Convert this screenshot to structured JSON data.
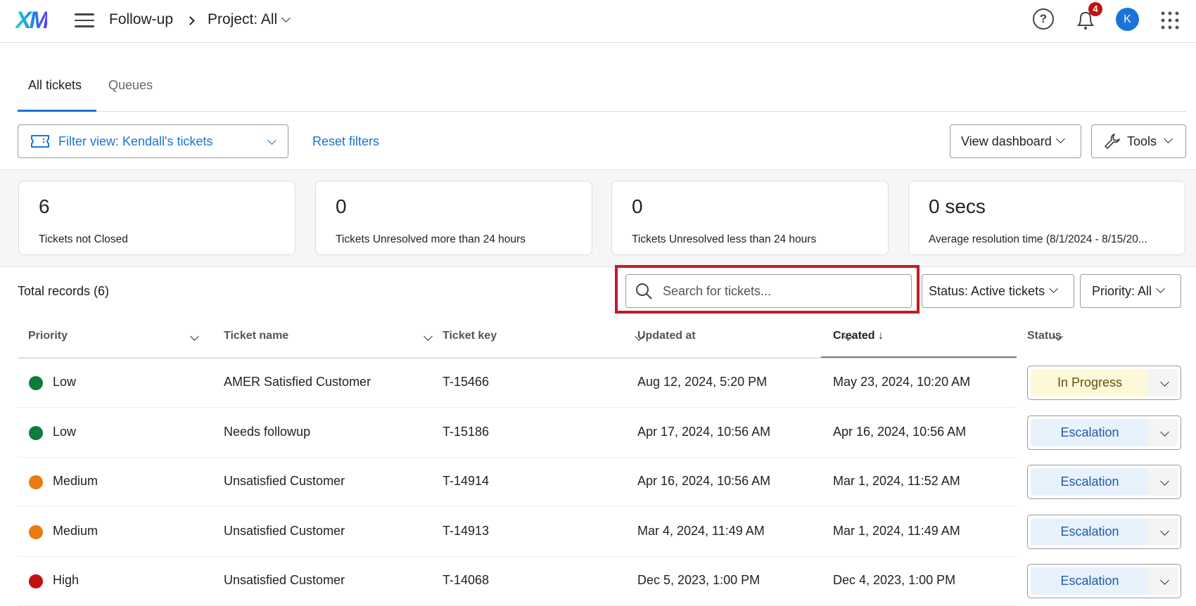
{
  "header": {
    "logo": "XM",
    "breadcrumb": [
      "Follow-up",
      "Project: All"
    ],
    "notification_count": "4",
    "avatar_initial": "K"
  },
  "tabs": [
    {
      "label": "All tickets",
      "active": true
    },
    {
      "label": "Queues",
      "active": false
    }
  ],
  "toolbar": {
    "filter_view": "Filter view: Kendall's tickets",
    "reset_filters": "Reset filters",
    "view_dashboard": "View dashboard",
    "tools": "Tools"
  },
  "stats": [
    {
      "value": "6",
      "label": "Tickets not Closed"
    },
    {
      "value": "0",
      "label": "Tickets Unresolved more than 24 hours"
    },
    {
      "value": "0",
      "label": "Tickets Unresolved less than 24 hours"
    },
    {
      "value": "0 secs",
      "label": "Average resolution time (8/1/2024 - 8/15/20..."
    }
  ],
  "records": {
    "total": "Total records (6)",
    "search_placeholder": "Search for tickets...",
    "status_filter": "Status: Active tickets",
    "priority_filter": "Priority: All"
  },
  "table": {
    "columns": [
      "Priority",
      "Ticket name",
      "Ticket key",
      "Updated at",
      "Created ↓",
      "Status"
    ],
    "rows": [
      {
        "priority": "Low",
        "color": "#0e7c3a",
        "name": "AMER Satisfied Customer",
        "key": "T-15466",
        "updated": "Aug 12, 2024, 5:20 PM",
        "created": "May 23, 2024, 10:20 AM",
        "status": "In Progress"
      },
      {
        "priority": "Low",
        "color": "#0e7c3a",
        "name": "Needs followup",
        "key": "T-15186",
        "updated": "Apr 17, 2024, 10:56 AM",
        "created": "Apr 16, 2024, 10:56 AM",
        "status": "Escalation"
      },
      {
        "priority": "Medium",
        "color": "#ea7a12",
        "name": "Unsatisfied Customer",
        "key": "T-14914",
        "updated": "Apr 16, 2024, 10:56 AM",
        "created": "Mar 1, 2024, 11:52 AM",
        "status": "Escalation"
      },
      {
        "priority": "Medium",
        "color": "#ea7a12",
        "name": "Unsatisfied Customer",
        "key": "T-14913",
        "updated": "Mar 4, 2024, 11:49 AM",
        "created": "Mar 1, 2024, 11:49 AM",
        "status": "Escalation"
      },
      {
        "priority": "High",
        "color": "#c0120f",
        "name": "Unsatisfied Customer",
        "key": "T-14068",
        "updated": "Dec 5, 2023, 1:00 PM",
        "created": "Dec 4, 2023, 1:00 PM",
        "status": "Escalation"
      }
    ]
  },
  "colors": {
    "accent": "#1a73d9",
    "highlight": "#c41a2c",
    "in_progress_bg": "#fdf8d8",
    "escalation_bg": "#e8f2fc"
  }
}
